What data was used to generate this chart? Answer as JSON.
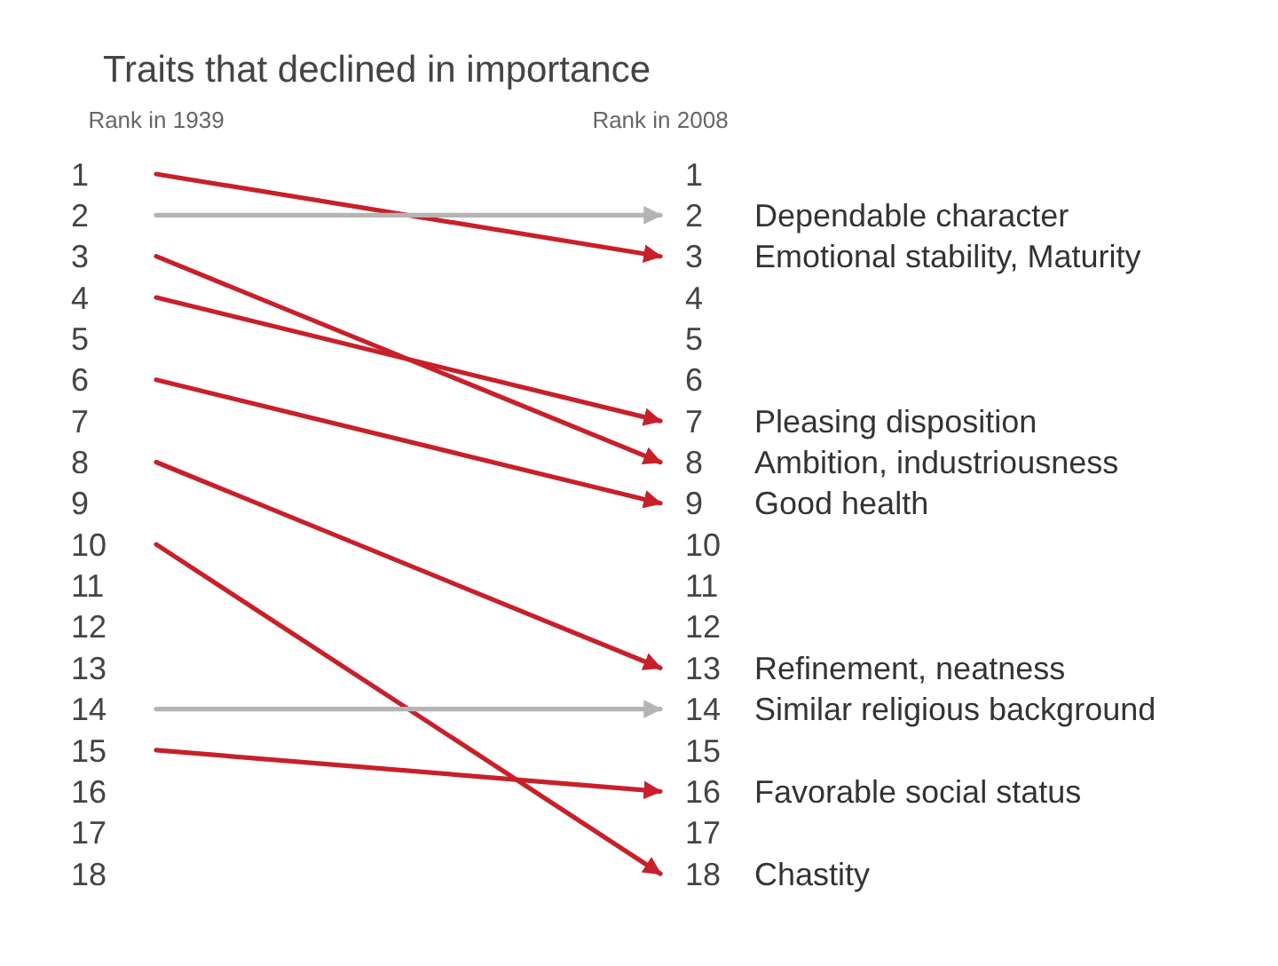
{
  "chart_data": {
    "type": "line",
    "title": "Traits that declined in importance",
    "categories": [
      "Rank in 1939",
      "Rank in 2008"
    ],
    "ylim": [
      18,
      1
    ],
    "yticks": [
      1,
      2,
      3,
      4,
      5,
      6,
      7,
      8,
      9,
      10,
      11,
      12,
      13,
      14,
      15,
      16,
      17,
      18
    ],
    "y2lim": [
      18,
      1
    ],
    "y2ticks": [
      1,
      2,
      3,
      4,
      5,
      6,
      7,
      8,
      9,
      10,
      11,
      12,
      13,
      14,
      15,
      16,
      17,
      18
    ],
    "series": [
      {
        "name": "Emotional stability, Maturity",
        "color": "#c8202a",
        "values": [
          1,
          3
        ]
      },
      {
        "name": "Dependable character",
        "color": "#b4b4b4",
        "values": [
          2,
          2
        ]
      },
      {
        "name": "Ambition, industriousness",
        "color": "#c8202a",
        "values": [
          3,
          8
        ]
      },
      {
        "name": "Pleasing disposition",
        "color": "#c8202a",
        "values": [
          4,
          7
        ]
      },
      {
        "name": "Good health",
        "color": "#c8202a",
        "values": [
          6,
          9
        ]
      },
      {
        "name": "Refinement, neatness",
        "color": "#c8202a",
        "values": [
          8,
          13
        ]
      },
      {
        "name": "Chastity",
        "color": "#c8202a",
        "values": [
          10,
          18
        ]
      },
      {
        "name": "Similar religious background",
        "color": "#b4b4b4",
        "values": [
          14,
          14
        ]
      },
      {
        "name": "Favorable social status",
        "color": "#c8202a",
        "values": [
          15,
          16
        ]
      }
    ]
  }
}
